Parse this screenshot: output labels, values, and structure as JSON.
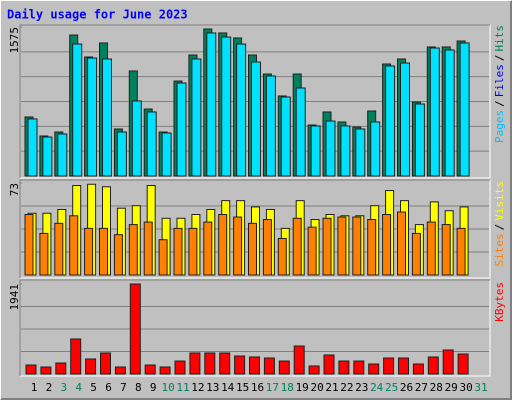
{
  "chart_data": {
    "type": "bar",
    "title": "Daily usage for June 2023",
    "categories": [
      "1",
      "2",
      "3",
      "4",
      "5",
      "6",
      "7",
      "8",
      "9",
      "10",
      "11",
      "12",
      "13",
      "14",
      "15",
      "16",
      "17",
      "18",
      "19",
      "20",
      "21",
      "22",
      "23",
      "24",
      "25",
      "26",
      "27",
      "28",
      "29",
      "30",
      "31"
    ],
    "category_colors": [
      "#000000",
      "#000000",
      "#00805c",
      "#00805c",
      "#000000",
      "#000000",
      "#000000",
      "#000000",
      "#000000",
      "#00805c",
      "#00805c",
      "#000000",
      "#000000",
      "#000000",
      "#000000",
      "#000000",
      "#00805c",
      "#00805c",
      "#000000",
      "#000000",
      "#000000",
      "#000000",
      "#000000",
      "#00805c",
      "#00805c",
      "#000000",
      "#000000",
      "#000000",
      "#000000",
      "#000000",
      "#00805c"
    ],
    "panels": [
      {
        "ylim": [
          0,
          1575
        ],
        "yticks": [
          1575
        ],
        "label_parts": [
          {
            "text": "Pages",
            "color": "#00c0ff"
          },
          {
            "text": "/",
            "color": "#000000"
          },
          {
            "text": "Files",
            "color": "#0000ff"
          },
          {
            "text": "/",
            "color": "#000000"
          },
          {
            "text": "Hits",
            "color": "#00805c"
          }
        ],
        "series": [
          {
            "name": "Hits",
            "color": "#00805c",
            "values": [
              624,
              423,
              465,
              1490,
              1258,
              1406,
              497,
              1110,
              708,
              465,
              1004,
              1279,
              1554,
              1512,
              1459,
              1279,
              1078,
              846,
              1078,
              539,
              677,
              571,
              518,
              687,
              1184,
              1237,
              782,
              1364,
              1364,
              1427,
              null
            ]
          },
          {
            "name": "Files",
            "color": "#00e0ff",
            "values": [
              603,
              412,
              444,
              1395,
              1247,
              1237,
              465,
              793,
              677,
              455,
              983,
              1237,
              1512,
              1469,
              1395,
              1205,
              1057,
              835,
              930,
              529,
              581,
              529,
              497,
              571,
              1163,
              1194,
              761,
              1353,
              1332,
              1406,
              null
            ]
          }
        ]
      },
      {
        "ylim": [
          0,
          73
        ],
        "yticks": [
          73
        ],
        "label_parts": [
          {
            "text": "Sites",
            "color": "#ff8000"
          },
          {
            "text": "/",
            "color": "#000000"
          },
          {
            "text": "Visits",
            "color": "#ffff00"
          }
        ],
        "series": [
          {
            "name": "Visits",
            "color": "#ffff00",
            "values": [
              49,
              49,
              52,
              71,
              72,
              70,
              53,
              55,
              71,
              45,
              45,
              48,
              52,
              59,
              59,
              54,
              52,
              37,
              59,
              44,
              48,
              47,
              47,
              55,
              67,
              59,
              40,
              58,
              51,
              54,
              null
            ]
          },
          {
            "name": "Sites",
            "color": "#ff8000",
            "values": [
              48,
              33,
              41,
              47,
              37,
              37,
              32,
              40,
              42,
              28,
              37,
              37,
              42,
              48,
              46,
              41,
              44,
              29,
              45,
              38,
              45,
              46,
              46,
              44,
              48,
              50,
              33,
              42,
              40,
              37,
              null
            ]
          }
        ]
      },
      {
        "ylim": [
          0,
          1941
        ],
        "yticks": [
          1941
        ],
        "label_parts": [
          {
            "text": "KBytes",
            "color": "#ff0000"
          }
        ],
        "series": [
          {
            "name": "KBytes",
            "color": "#ff0000",
            "values": [
              194,
              151,
              237,
              755,
              324,
              453,
              151,
              1941,
              194,
              151,
              280,
              453,
              453,
              453,
              388,
              367,
              345,
              280,
              604,
              173,
              410,
              280,
              280,
              216,
              345,
              345,
              216,
              367,
              518,
              431,
              null
            ]
          }
        ]
      }
    ]
  }
}
